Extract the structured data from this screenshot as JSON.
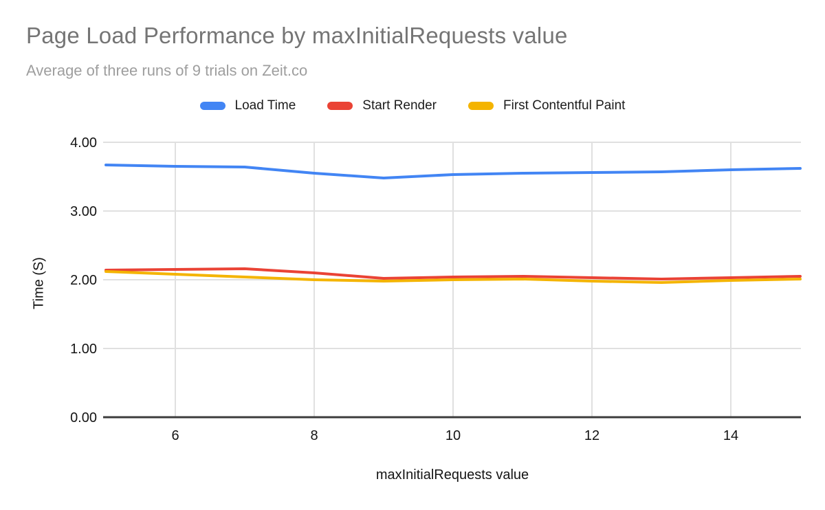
{
  "header": {
    "title": "Page Load Performance by maxInitialRequests value",
    "subtitle": "Average of three runs of 9 trials on Zeit.co"
  },
  "chart_data": {
    "type": "line",
    "title": "Page Load Performance by maxInitialRequests value",
    "subtitle": "Average of three runs of 9 trials on Zeit.co",
    "x": [
      5,
      6,
      7,
      8,
      9,
      10,
      11,
      12,
      13,
      14,
      15
    ],
    "series": [
      {
        "name": "Load Time",
        "color": "#4285F4",
        "values": [
          3.67,
          3.65,
          3.64,
          3.55,
          3.48,
          3.53,
          3.55,
          3.56,
          3.57,
          3.6,
          3.62
        ]
      },
      {
        "name": "Start Render",
        "color": "#EA4335",
        "values": [
          2.14,
          2.15,
          2.16,
          2.1,
          2.02,
          2.04,
          2.05,
          2.03,
          2.01,
          2.03,
          2.05
        ]
      },
      {
        "name": "First Contentful Paint",
        "color": "#F4B400",
        "values": [
          2.12,
          2.08,
          2.04,
          2.0,
          1.98,
          2.0,
          2.01,
          1.98,
          1.96,
          1.99,
          2.01
        ]
      }
    ],
    "xlabel": "maxInitialRequests value",
    "ylabel": "Time (S)",
    "xlim": [
      5,
      15
    ],
    "ylim": [
      0,
      4
    ],
    "x_ticks": [
      "6",
      "8",
      "10",
      "12",
      "14"
    ],
    "y_ticks": [
      "0.00",
      "1.00",
      "2.00",
      "3.00",
      "4.00"
    ],
    "grid": true,
    "legend_position": "top"
  },
  "colors": {
    "title_text": "#757575",
    "subtitle_text": "#9E9E9E",
    "grid": "#E0E0E0",
    "axis": "#3C3C3C",
    "tick_text": "#141414"
  }
}
